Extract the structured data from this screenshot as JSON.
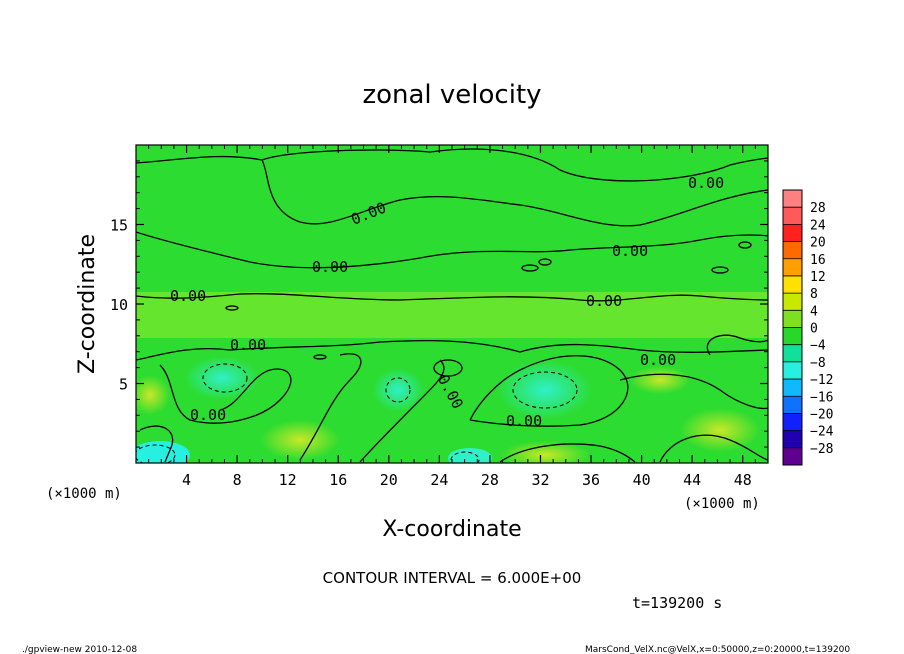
{
  "chart_data": {
    "type": "heatmap",
    "title": "zonal velocity",
    "xlabel": "X-coordinate",
    "ylabel": "Z-coordinate",
    "x_unit_left": "(×1000 m)",
    "x_unit_right": "(×1000 m)",
    "xlim": [
      0,
      50
    ],
    "ylim": [
      0,
      20
    ],
    "xticks": [
      4,
      8,
      12,
      16,
      20,
      24,
      28,
      32,
      36,
      40,
      44,
      48
    ],
    "yticks": [
      5,
      10,
      15
    ],
    "contour_label": "0.00",
    "contour_interval": "CONTOUR INTERVAL = 6.000E+00",
    "time_label": "t=139200 s",
    "colorbar": {
      "labels": [
        "28",
        "24",
        "20",
        "16",
        "12",
        "8",
        "4",
        "0",
        "−4",
        "−8",
        "−12",
        "−16",
        "−20",
        "−24",
        "−28"
      ],
      "colors": [
        "#ff8080",
        "#ff5a5a",
        "#ff2020",
        "#ff6a00",
        "#ffa000",
        "#ffe000",
        "#c8e800",
        "#7ee020",
        "#28d828",
        "#10e09a",
        "#28f0e0",
        "#10b8ff",
        "#1070ff",
        "#1020ff",
        "#2000b0",
        "#600090"
      ]
    },
    "field_description_levels": [
      "near 0 background",
      "weak negative minima near z<5",
      "positive band near z≈9"
    ]
  },
  "footer": {
    "left": "./gpview-new   2010-12-08",
    "right": "MarsCond_VelX.nc@VelX,x=0:50000,z=0:20000,t=139200"
  }
}
